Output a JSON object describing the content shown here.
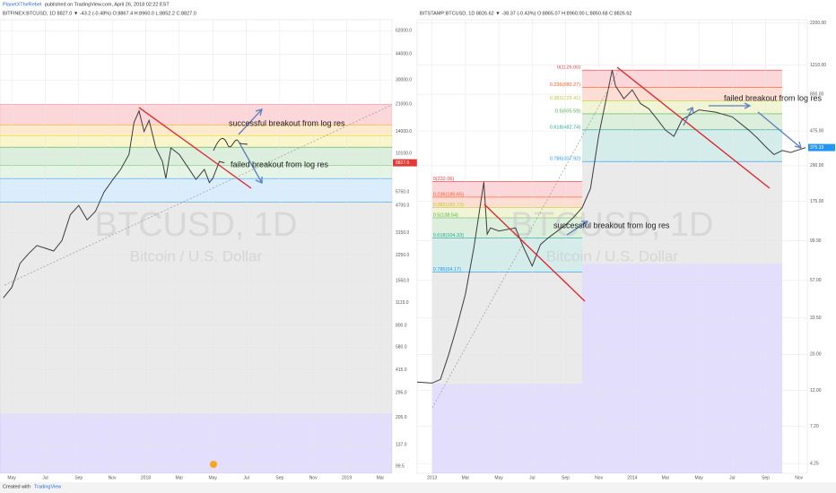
{
  "header": {
    "author": "PlanetXTheRebel",
    "published": "published on TradingView.com, April 26, 2018 02:22 EST"
  },
  "footer": {
    "created": "Created with",
    "brand": "TradingView"
  },
  "chart_data": [
    {
      "type": "line",
      "symbol_line": "BITFINEX:BTCUSD, 1D  8827.0 ▼ -43.2 (-0.48%)  O:8867.4  H:8960.0  L:8852.2  C:8827.0",
      "watermark": "BTCUSD, 1D",
      "watermark_sub": "Bitcoin / U.S. Dollar",
      "log_scale": true,
      "grid": true,
      "color": "#3c3c3c",
      "last_price": {
        "value": 8827,
        "label": "8827.0",
        "color": "#e53935"
      },
      "xlim": [
        -0.7,
        22.7
      ],
      "ylim": [
        90,
        73000
      ],
      "xticks": [
        {
          "value": 0,
          "label": "May"
        },
        {
          "value": 2,
          "label": "Jul"
        },
        {
          "value": 4,
          "label": "Sep"
        },
        {
          "value": 6,
          "label": "Nov"
        },
        {
          "value": 8,
          "label": "2018"
        },
        {
          "value": 10,
          "label": "Mar"
        },
        {
          "value": 12,
          "label": "May"
        },
        {
          "value": 14,
          "label": "Jul"
        },
        {
          "value": 16,
          "label": "Sep"
        },
        {
          "value": 18,
          "label": "Nov"
        },
        {
          "value": 20,
          "label": "2019"
        },
        {
          "value": 22,
          "label": "Mar"
        }
      ],
      "yticks": [
        {
          "value": 62000,
          "label": "62000.0"
        },
        {
          "value": 44000,
          "label": "44000.0"
        },
        {
          "value": 30000,
          "label": "30000.0"
        },
        {
          "value": 21000,
          "label": "21000.0"
        },
        {
          "value": 14000,
          "label": "14000.0"
        },
        {
          "value": 10100,
          "label": "10100.0"
        },
        {
          "value": 5750,
          "label": "5750.0"
        },
        {
          "value": 4700,
          "label": "4700.0"
        },
        {
          "value": 3150,
          "label": "3150.0"
        },
        {
          "value": 2250,
          "label": "2250.0"
        },
        {
          "value": 1550,
          "label": "1550.0"
        },
        {
          "value": 1115,
          "label": "1115.0"
        },
        {
          "value": 800,
          "label": "800.0"
        },
        {
          "value": 580,
          "label": "580.0"
        },
        {
          "value": 415,
          "label": "415.0"
        },
        {
          "value": 295,
          "label": "295.0"
        },
        {
          "value": 205,
          "label": "205.0"
        },
        {
          "value": 137,
          "label": "137.0"
        },
        {
          "value": 99.5,
          "label": "99.5"
        }
      ],
      "fib_sets": [
        {
          "x0": -0.7,
          "x1": 22.7,
          "levels": [
            {
              "value": 20950,
              "color": "#f23645"
            },
            {
              "value": 15460,
              "color": "#ff9800"
            },
            {
              "value": 13190,
              "color": "#e6d200"
            },
            {
              "value": 11110,
              "color": "#4caf50"
            },
            {
              "value": 8520,
              "color": "#81c784"
            },
            {
              "value": 6990,
              "color": "#42a5f5"
            },
            {
              "value": 4950,
              "color": "#42a5f5"
            }
          ]
        }
      ],
      "zones": [
        {
          "x0": -0.7,
          "x1": 22.7,
          "top": 4950,
          "bottom": 218,
          "color": "#9e9e9e"
        },
        {
          "x0": -0.7,
          "x1": 22.7,
          "top": 218,
          "bottom": 90,
          "color": "#7b68ee"
        }
      ],
      "x": [
        -0.5,
        0,
        0.5,
        1,
        1.5,
        2,
        2.5,
        3,
        3.5,
        4,
        4.5,
        5,
        5.5,
        6,
        6.5,
        7,
        7.3,
        7.6,
        7.9,
        8.2,
        8.6,
        9,
        9.2,
        9.5,
        10,
        10.5,
        11,
        11.5,
        11.8,
        12,
        12.4,
        12.7
      ],
      "values": [
        1200,
        1400,
        2000,
        2300,
        2600,
        2500,
        2400,
        2800,
        4100,
        4700,
        3800,
        4300,
        5700,
        6800,
        8000,
        10000,
        16000,
        19000,
        14000,
        16500,
        11000,
        9000,
        7000,
        11000,
        10000,
        8300,
        6900,
        8000,
        6600,
        7000,
        9000,
        8827
      ],
      "annotations": [
        "successful breakout from log res",
        "failed breakout from log res"
      ]
    },
    {
      "type": "line",
      "symbol_line": "BITSTAMP:BTCUSD, 1D  8826.62 ▼ -38.37 (-0.43%)  O:8865.07  H:8960.00  L:8850.68  C:8826.62",
      "watermark": "BTCUSD, 1D",
      "watermark_sub": "Bitcoin / U.S. Dollar",
      "log_scale": true,
      "grid": true,
      "color": "#3c3c3c",
      "last_price": {
        "value": 375.33,
        "label": "375.33",
        "color": "#2196f3"
      },
      "xlim": [
        -0.9,
        22.5
      ],
      "ylim": [
        3.7,
        2300
      ],
      "xticks": [
        {
          "value": 0,
          "label": "2013"
        },
        {
          "value": 2,
          "label": "Mar"
        },
        {
          "value": 4,
          "label": "May"
        },
        {
          "value": 6,
          "label": "Jul"
        },
        {
          "value": 8,
          "label": "Sep"
        },
        {
          "value": 10,
          "label": "Nov"
        },
        {
          "value": 12,
          "label": "2014"
        },
        {
          "value": 14,
          "label": "Mar"
        },
        {
          "value": 16,
          "label": "May"
        },
        {
          "value": 18,
          "label": "Jul"
        },
        {
          "value": 20,
          "label": "Sep"
        },
        {
          "value": 22,
          "label": "Nov"
        }
      ],
      "yticks": [
        {
          "value": 2200,
          "label": "2200.00"
        },
        {
          "value": 1210,
          "label": "1210.00"
        },
        {
          "value": 800,
          "label": "800.00"
        },
        {
          "value": 475,
          "label": "475.00"
        },
        {
          "value": 290,
          "label": "290.00"
        },
        {
          "value": 175,
          "label": "175.00"
        },
        {
          "value": 99.9,
          "label": "99.90"
        },
        {
          "value": 57,
          "label": "57.00"
        },
        {
          "value": 33.5,
          "label": "33.50"
        },
        {
          "value": 20,
          "label": "20.00"
        },
        {
          "value": 12,
          "label": "12.00"
        },
        {
          "value": 7.2,
          "label": "7.20"
        },
        {
          "value": 4.25,
          "label": "4.25"
        }
      ],
      "fib_sets": [
        {
          "x0": 9,
          "x1": 21,
          "levels": [
            {
              "value": 1126,
              "label": "0(1126.00)",
              "color": "#f23645"
            },
            {
              "value": 880.27,
              "label": "0.236(880.27)",
              "color": "#ff5722"
            },
            {
              "value": 729.41,
              "label": "0.382(729.41)",
              "color": "#c0ca33"
            },
            {
              "value": 605.59,
              "label": "0.5(605.59)",
              "color": "#4caf50"
            },
            {
              "value": 482.74,
              "label": "0.618(482.74)",
              "color": "#26a69a"
            },
            {
              "value": 307.92,
              "label": "0.786(307.92)",
              "color": "#2196f3"
            }
          ]
        },
        {
          "x0": 0,
          "x1": 9,
          "levels": [
            {
              "value": 232.06,
              "label": "0(232.06)",
              "color": "#f23645"
            },
            {
              "value": 185.65,
              "label": "0.236(185.65)",
              "color": "#ff5722"
            },
            {
              "value": 160.73,
              "label": "0.382(160.73)",
              "color": "#c0ca33"
            },
            {
              "value": 138.54,
              "label": "0.5(138.54)",
              "color": "#4caf50"
            },
            {
              "value": 104.33,
              "label": "0.618(104.33)",
              "color": "#26a69a"
            },
            {
              "value": 64.17,
              "label": "0.786(64.17)",
              "color": "#2196f3"
            }
          ]
        }
      ],
      "zones": [
        {
          "x0": 9,
          "x1": 21,
          "top": 307.92,
          "bottom": 72.18,
          "color": "#9e9e9e"
        },
        {
          "x0": 9,
          "x1": 21,
          "top": 72.18,
          "bottom": 3.7,
          "color": "#7b68ee"
        },
        {
          "x0": 0,
          "x1": 9,
          "top": 64.17,
          "bottom": 13.16,
          "color": "#9e9e9e"
        },
        {
          "x0": 0,
          "x1": 9,
          "top": 13.16,
          "bottom": 3.7,
          "color": "#7b68ee"
        }
      ],
      "x": [
        -0.9,
        0,
        0.5,
        1,
        1.5,
        2,
        2.5,
        3.1,
        3.3,
        3.5,
        4,
        5,
        5.5,
        6,
        6.5,
        7,
        8,
        8.5,
        9,
        9.5,
        10,
        10.5,
        10.8,
        11,
        11.5,
        12,
        12.5,
        13,
        13.5,
        14,
        14.5,
        15,
        16,
        17,
        18,
        19,
        19.5,
        20,
        20.5,
        21,
        21.5,
        22.4
      ],
      "values": [
        13.5,
        13.3,
        14,
        20,
        30,
        47,
        90,
        230,
        110,
        120,
        115,
        120,
        90,
        70,
        95,
        105,
        125,
        140,
        160,
        210,
        450,
        800,
        1126,
        900,
        750,
        850,
        700,
        650,
        560,
        480,
        440,
        560,
        640,
        620,
        580,
        480,
        430,
        380,
        340,
        360,
        350,
        375.33
      ],
      "annotations": [
        "successful breakout from log res",
        "failed breakout from log res"
      ]
    }
  ]
}
